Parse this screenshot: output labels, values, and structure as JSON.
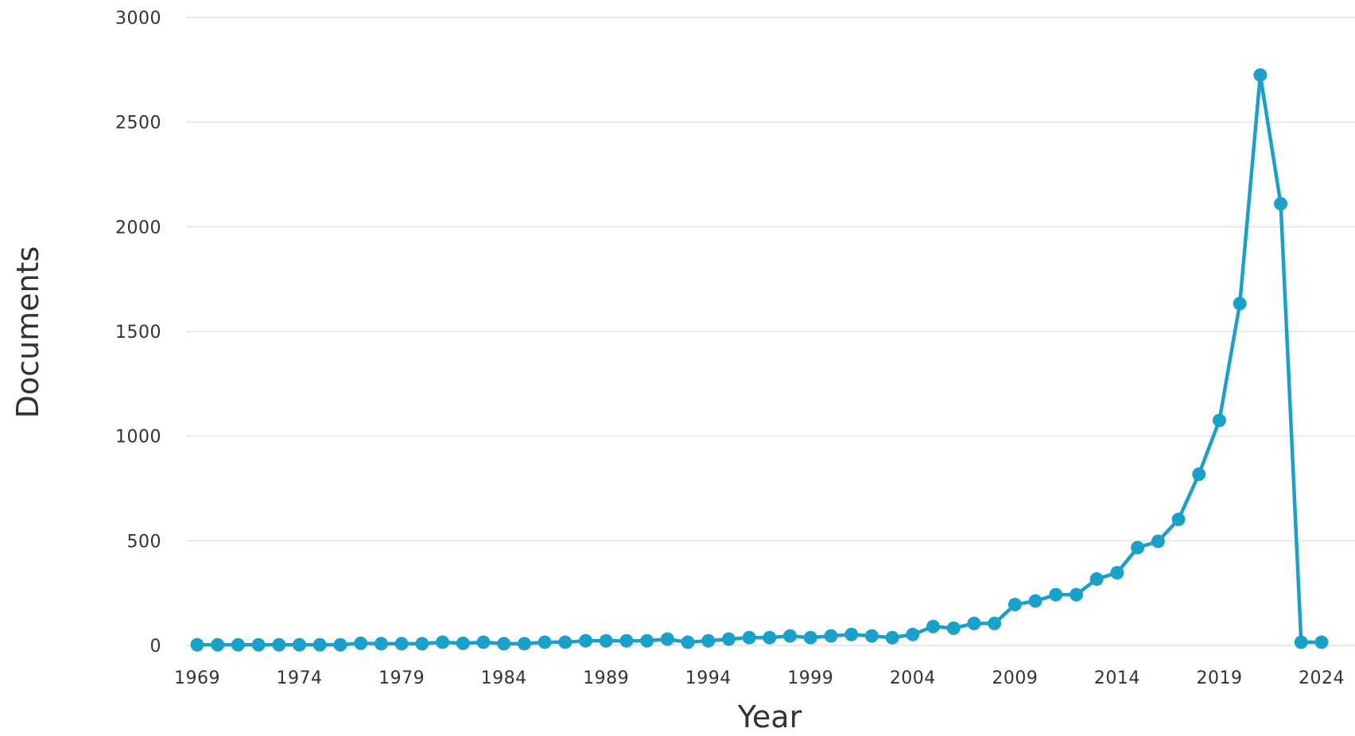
{
  "chart_data": {
    "type": "line",
    "xlabel": "Year",
    "ylabel": "Documents",
    "ylim": [
      0,
      3000
    ],
    "yticks": [
      0,
      500,
      1000,
      1500,
      2000,
      2500,
      3000
    ],
    "xlim": [
      1969,
      2024
    ],
    "xticks": [
      1969,
      1974,
      1979,
      1984,
      1989,
      1994,
      1999,
      2004,
      2009,
      2014,
      2019,
      2024
    ],
    "grid": "horizontal",
    "color": "#1aa0c9",
    "series": [
      {
        "x": [
          1969,
          1970,
          1971,
          1972,
          1973,
          1974,
          1975,
          1976,
          1977,
          1978,
          1979,
          1980,
          1981,
          1982,
          1983,
          1984,
          1985,
          1986,
          1987,
          1988,
          1989,
          1990,
          1991,
          1992,
          1993,
          1994,
          1995,
          1996,
          1997,
          1998,
          1999,
          2000,
          2001,
          2002,
          2003,
          2004,
          2005,
          2006,
          2007,
          2008,
          2009,
          2010,
          2011,
          2012,
          2013,
          2014,
          2015,
          2016,
          2017,
          2018,
          2019,
          2020,
          2021,
          2022,
          2023,
          2024
        ],
        "values": [
          3,
          3,
          3,
          3,
          3,
          3,
          3,
          3,
          10,
          8,
          8,
          8,
          15,
          10,
          15,
          8,
          8,
          15,
          15,
          22,
          22,
          22,
          22,
          30,
          15,
          22,
          30,
          37,
          37,
          45,
          37,
          45,
          52,
          45,
          37,
          52,
          90,
          82,
          105,
          105,
          195,
          212,
          242,
          242,
          317,
          347,
          467,
          497,
          602,
          818,
          1075,
          1633,
          2725,
          2110,
          15,
          15
        ]
      }
    ]
  }
}
